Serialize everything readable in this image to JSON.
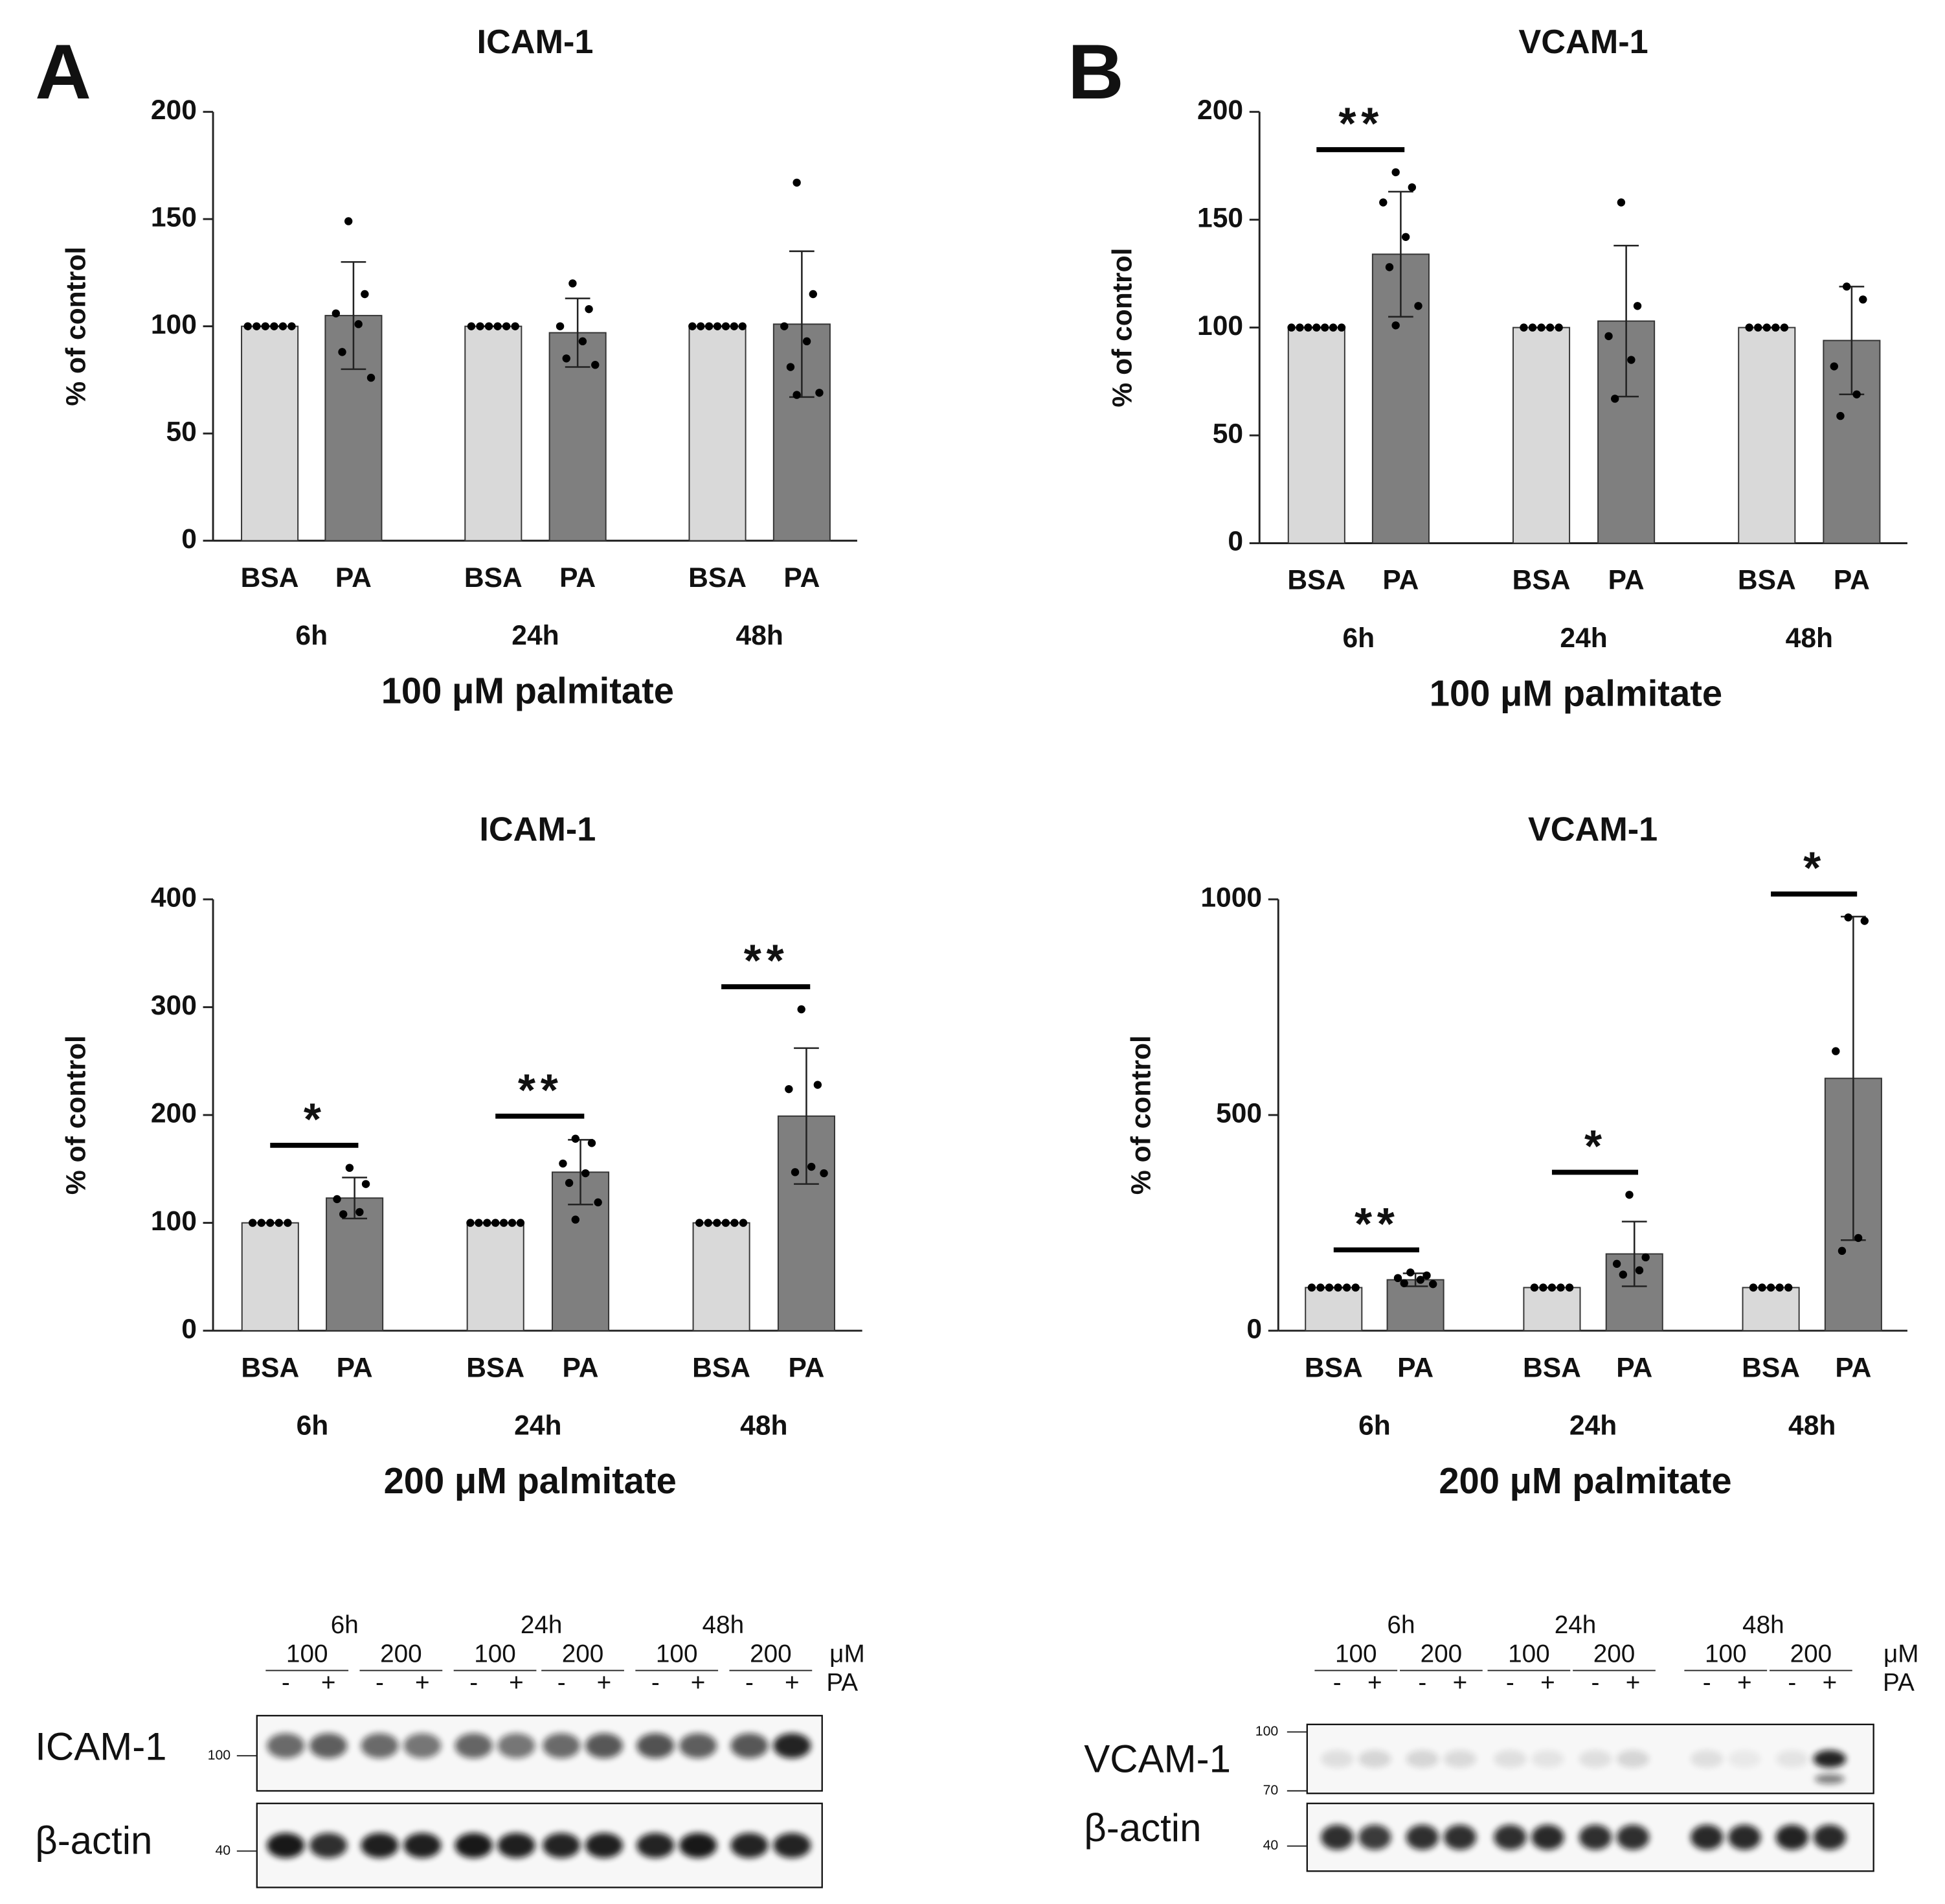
{
  "panel_labels": [
    "A",
    "B"
  ],
  "chart_data": [
    {
      "type": "bar",
      "title": "ICAM-1",
      "y_label": "% of control",
      "x_label": "100 μM palmitate",
      "categories": [
        "BSA",
        "PA",
        "BSA",
        "PA",
        "BSA",
        "PA"
      ],
      "groups": [
        "6h",
        "24h",
        "48h"
      ],
      "colors": [
        "#d9d9d9",
        "#7f7f7f"
      ],
      "values": [
        100,
        105,
        100,
        97,
        100,
        101
      ],
      "errors": [
        0,
        25,
        0,
        16,
        0,
        34
      ],
      "points": [
        [
          100,
          100,
          100,
          100,
          100,
          100
        ],
        [
          149,
          115,
          106,
          101,
          88,
          76
        ],
        [
          100,
          100,
          100,
          100,
          100,
          100
        ],
        [
          120,
          108,
          100,
          93,
          85,
          82
        ],
        [
          100,
          100,
          100,
          100,
          100,
          100,
          100
        ],
        [
          167,
          115,
          100,
          93,
          81,
          69,
          68
        ]
      ],
      "significance": [
        null,
        null,
        null
      ],
      "ylim": [
        0,
        200
      ],
      "yticks": [
        0,
        50,
        100,
        150,
        200
      ]
    },
    {
      "type": "bar",
      "title": "VCAM-1",
      "y_label": "% of control",
      "x_label": "100 μM palmitate",
      "categories": [
        "BSA",
        "PA",
        "BSA",
        "PA",
        "BSA",
        "PA"
      ],
      "groups": [
        "6h",
        "24h",
        "48h"
      ],
      "colors": [
        "#d9d9d9",
        "#7f7f7f"
      ],
      "values": [
        100,
        134,
        100,
        103,
        100,
        94
      ],
      "errors": [
        0,
        29,
        0,
        35,
        0,
        25
      ],
      "points": [
        [
          100,
          100,
          100,
          100,
          100,
          100,
          100
        ],
        [
          172,
          165,
          158,
          142,
          128,
          110,
          101
        ],
        [
          100,
          100,
          100,
          100,
          100
        ],
        [
          158,
          110,
          96,
          85,
          67
        ],
        [
          100,
          100,
          100,
          100,
          100
        ],
        [
          119,
          113,
          82,
          69,
          59
        ]
      ],
      "significance": [
        "**",
        null,
        null
      ],
      "ylim": [
        0,
        200
      ],
      "yticks": [
        0,
        50,
        100,
        150,
        200
      ]
    },
    {
      "type": "bar",
      "title": "ICAM-1",
      "y_label": "% of control",
      "x_label": "200 μM palmitate",
      "categories": [
        "BSA",
        "PA",
        "BSA",
        "PA",
        "BSA",
        "PA"
      ],
      "groups": [
        "6h",
        "24h",
        "48h"
      ],
      "colors": [
        "#d9d9d9",
        "#7f7f7f"
      ],
      "values": [
        100,
        123,
        100,
        147,
        100,
        199
      ],
      "errors": [
        0,
        19,
        0,
        30,
        0,
        63
      ],
      "points": [
        [
          100,
          100,
          100,
          100,
          100
        ],
        [
          151,
          136,
          122,
          110,
          108
        ],
        [
          100,
          100,
          100,
          100,
          100,
          100,
          100
        ],
        [
          178,
          174,
          155,
          146,
          137,
          119,
          103
        ],
        [
          100,
          100,
          100,
          100,
          100,
          100
        ],
        [
          298,
          228,
          224,
          152,
          147,
          146
        ]
      ],
      "significance": [
        "*",
        "**",
        "**"
      ],
      "ylim": [
        0,
        400
      ],
      "yticks": [
        0,
        100,
        200,
        300,
        400
      ]
    },
    {
      "type": "bar",
      "title": "VCAM-1",
      "y_label": "% of control",
      "x_label": "200 μM palmitate",
      "categories": [
        "BSA",
        "PA",
        "BSA",
        "PA",
        "BSA",
        "PA"
      ],
      "groups": [
        "6h",
        "24h",
        "48h"
      ],
      "colors": [
        "#d9d9d9",
        "#7f7f7f"
      ],
      "values": [
        100,
        118,
        100,
        178,
        100,
        585
      ],
      "errors": [
        0,
        15,
        0,
        75,
        0,
        375
      ],
      "points": [
        [
          100,
          100,
          100,
          100,
          100,
          100
        ],
        [
          135,
          128,
          122,
          118,
          110,
          108
        ],
        [
          100,
          100,
          100,
          100,
          100
        ],
        [
          315,
          170,
          155,
          140,
          130
        ],
        [
          100,
          100,
          100,
          100,
          100
        ],
        [
          958,
          950,
          648,
          215,
          185
        ]
      ],
      "significance": [
        "**",
        "*",
        "*"
      ],
      "ylim": [
        0,
        1000
      ],
      "yticks": [
        0,
        500,
        1000
      ]
    }
  ],
  "blots": [
    {
      "times": [
        "6h",
        "24h",
        "48h"
      ],
      "doses": [
        "100",
        "200",
        "100",
        "200",
        "100",
        "200"
      ],
      "dose_unit": "μM",
      "signs": [
        "-",
        "+",
        "-",
        "+",
        "-",
        "+",
        "-",
        "+",
        "-",
        "+",
        "-",
        "+"
      ],
      "treatment": "PA",
      "rows": [
        {
          "label": "ICAM-1",
          "markers": [
            "100"
          ]
        },
        {
          "label": "β-actin",
          "markers": [
            "40"
          ]
        }
      ]
    },
    {
      "times": [
        "6h",
        "24h",
        "48h"
      ],
      "doses": [
        "100",
        "200",
        "100",
        "200",
        "100",
        "200"
      ],
      "dose_unit": "μM",
      "signs": [
        "-",
        "+",
        "-",
        "+",
        "-",
        "+",
        "-",
        "+",
        "-",
        "+",
        "-",
        "+"
      ],
      "treatment": "PA",
      "rows": [
        {
          "label": "VCAM-1",
          "markers": [
            "100",
            "70"
          ]
        },
        {
          "label": "β-actin",
          "markers": [
            "40"
          ]
        }
      ]
    }
  ]
}
